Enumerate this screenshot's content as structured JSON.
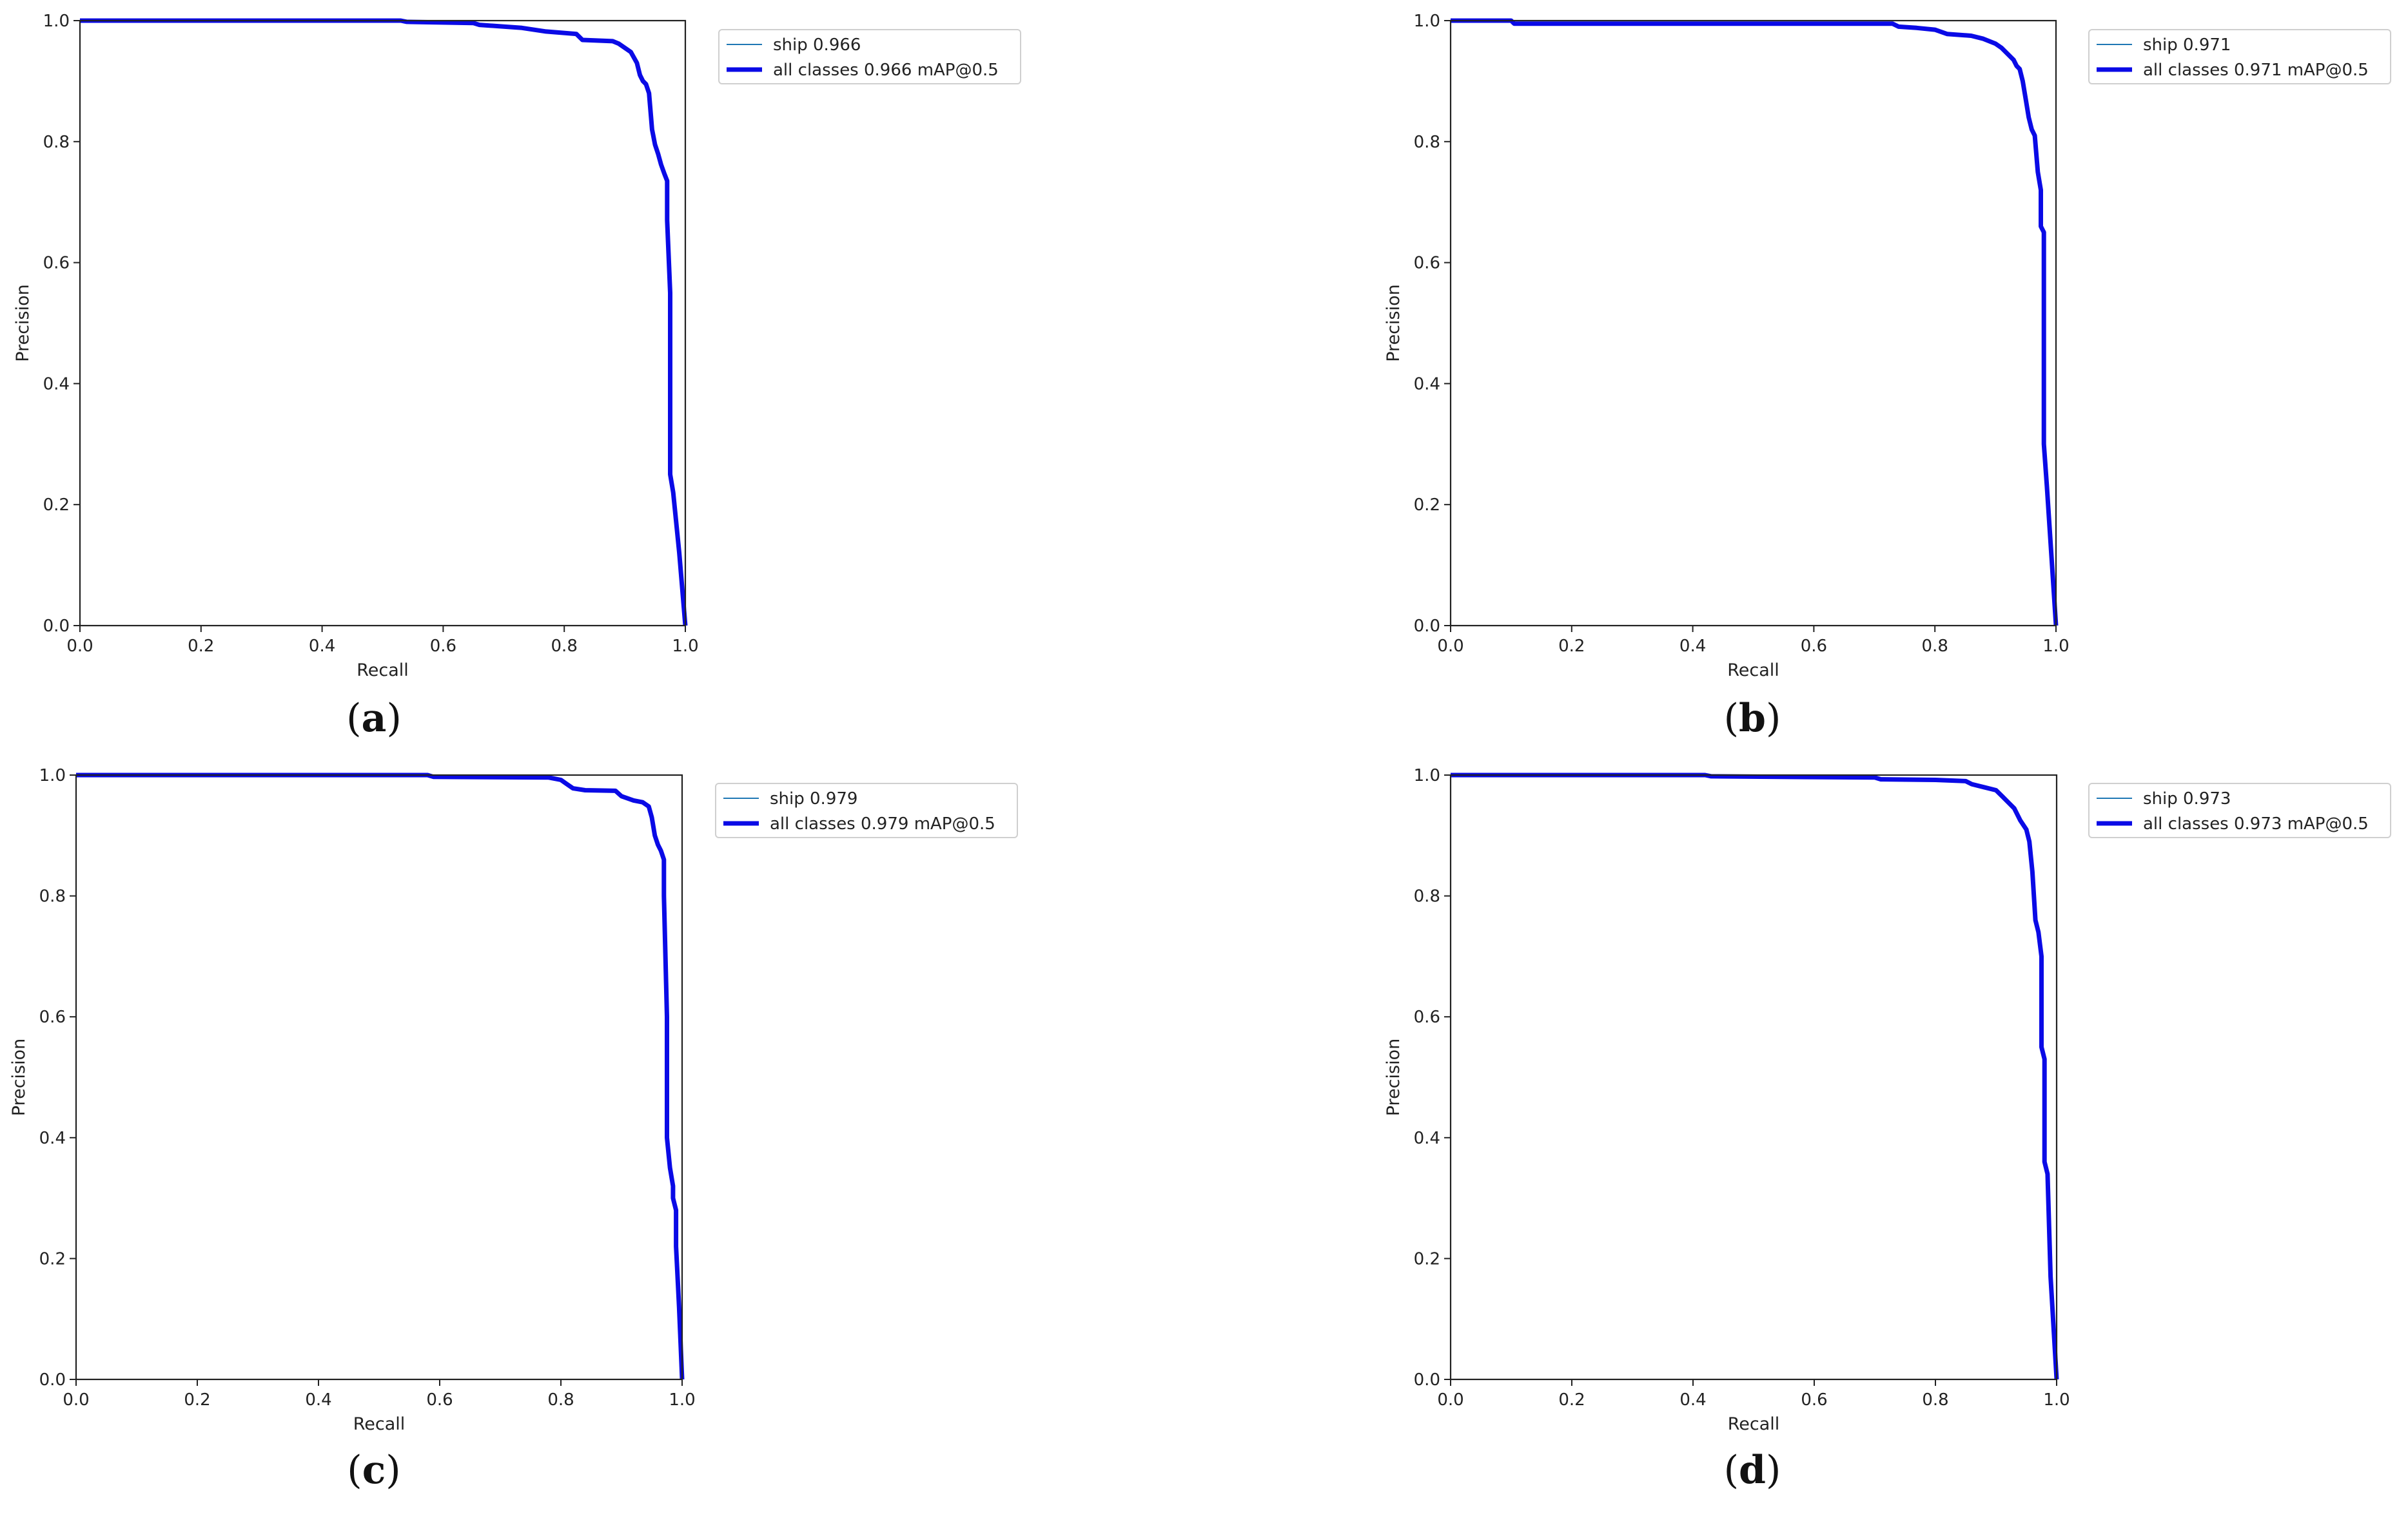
{
  "figure": {
    "panels": [
      {
        "caption_letter": "a",
        "legend": {
          "ship_label": "ship 0.966",
          "all_label": "all classes 0.966 mAP@0.5"
        }
      },
      {
        "caption_letter": "b",
        "legend": {
          "ship_label": "ship 0.971",
          "all_label": "all classes 0.971 mAP@0.5"
        }
      },
      {
        "caption_letter": "c",
        "legend": {
          "ship_label": "ship 0.979",
          "all_label": "all classes 0.979 mAP@0.5"
        }
      },
      {
        "caption_letter": "d",
        "legend": {
          "ship_label": "ship 0.973",
          "all_label": "all classes 0.973 mAP@0.5"
        }
      }
    ]
  },
  "chart_data": [
    {
      "type": "line",
      "xlabel": "Recall",
      "ylabel": "Precision",
      "xlim": [
        0,
        1
      ],
      "ylim": [
        0,
        1
      ],
      "xticks": [
        "0.0",
        "0.2",
        "0.4",
        "0.6",
        "0.8",
        "1.0"
      ],
      "yticks": [
        "0.0",
        "0.2",
        "0.4",
        "0.6",
        "0.8",
        "1.0"
      ],
      "grid": false,
      "legend_placement": "outside-right",
      "series": [
        {
          "name": "ship 0.966",
          "color": "#1f77b4",
          "width": "thin",
          "points": [
            [
              0.0,
              1.0
            ],
            [
              0.53,
              1.0
            ],
            [
              0.54,
              0.998
            ],
            [
              0.65,
              0.996
            ],
            [
              0.66,
              0.993
            ],
            [
              0.73,
              0.988
            ],
            [
              0.77,
              0.982
            ],
            [
              0.82,
              0.978
            ],
            [
              0.83,
              0.968
            ],
            [
              0.88,
              0.966
            ],
            [
              0.89,
              0.962
            ],
            [
              0.9,
              0.955
            ],
            [
              0.91,
              0.948
            ],
            [
              0.92,
              0.93
            ],
            [
              0.925,
              0.91
            ],
            [
              0.93,
              0.9
            ],
            [
              0.935,
              0.895
            ],
            [
              0.94,
              0.88
            ],
            [
              0.945,
              0.82
            ],
            [
              0.95,
              0.795
            ],
            [
              0.955,
              0.78
            ],
            [
              0.96,
              0.762
            ],
            [
              0.965,
              0.748
            ],
            [
              0.97,
              0.735
            ],
            [
              0.97,
              0.67
            ],
            [
              0.975,
              0.55
            ],
            [
              0.975,
              0.25
            ],
            [
              0.98,
              0.22
            ],
            [
              0.99,
              0.12
            ],
            [
              1.0,
              0.0
            ]
          ]
        },
        {
          "name": "all classes 0.966 mAP@0.5",
          "color": "#0a0ae6",
          "width": "thick",
          "points": [
            [
              0.0,
              1.0
            ],
            [
              0.53,
              1.0
            ],
            [
              0.54,
              0.998
            ],
            [
              0.65,
              0.996
            ],
            [
              0.66,
              0.993
            ],
            [
              0.73,
              0.988
            ],
            [
              0.77,
              0.982
            ],
            [
              0.82,
              0.978
            ],
            [
              0.83,
              0.968
            ],
            [
              0.88,
              0.966
            ],
            [
              0.89,
              0.962
            ],
            [
              0.9,
              0.955
            ],
            [
              0.91,
              0.948
            ],
            [
              0.92,
              0.93
            ],
            [
              0.925,
              0.91
            ],
            [
              0.93,
              0.9
            ],
            [
              0.935,
              0.895
            ],
            [
              0.94,
              0.88
            ],
            [
              0.945,
              0.82
            ],
            [
              0.95,
              0.795
            ],
            [
              0.955,
              0.78
            ],
            [
              0.96,
              0.762
            ],
            [
              0.965,
              0.748
            ],
            [
              0.97,
              0.735
            ],
            [
              0.97,
              0.67
            ],
            [
              0.975,
              0.55
            ],
            [
              0.975,
              0.25
            ],
            [
              0.98,
              0.22
            ],
            [
              0.99,
              0.12
            ],
            [
              1.0,
              0.0
            ]
          ]
        }
      ]
    },
    {
      "type": "line",
      "xlabel": "Recall",
      "ylabel": "Precision",
      "xlim": [
        0,
        1
      ],
      "ylim": [
        0,
        1
      ],
      "xticks": [
        "0.0",
        "0.2",
        "0.4",
        "0.6",
        "0.8",
        "1.0"
      ],
      "yticks": [
        "0.0",
        "0.2",
        "0.4",
        "0.6",
        "0.8",
        "1.0"
      ],
      "grid": false,
      "legend_placement": "outside-right",
      "series": [
        {
          "name": "ship 0.971",
          "color": "#1f77b4",
          "width": "thin",
          "points": [
            [
              0.0,
              1.0
            ],
            [
              0.1,
              1.0
            ],
            [
              0.105,
              0.995
            ],
            [
              0.73,
              0.995
            ],
            [
              0.74,
              0.99
            ],
            [
              0.77,
              0.988
            ],
            [
              0.8,
              0.985
            ],
            [
              0.82,
              0.978
            ],
            [
              0.86,
              0.975
            ],
            [
              0.88,
              0.97
            ],
            [
              0.9,
              0.962
            ],
            [
              0.91,
              0.955
            ],
            [
              0.92,
              0.945
            ],
            [
              0.93,
              0.935
            ],
            [
              0.935,
              0.925
            ],
            [
              0.94,
              0.92
            ],
            [
              0.945,
              0.9
            ],
            [
              0.95,
              0.87
            ],
            [
              0.955,
              0.84
            ],
            [
              0.96,
              0.82
            ],
            [
              0.965,
              0.81
            ],
            [
              0.97,
              0.75
            ],
            [
              0.975,
              0.72
            ],
            [
              0.975,
              0.66
            ],
            [
              0.98,
              0.65
            ],
            [
              0.98,
              0.3
            ],
            [
              0.985,
              0.23
            ],
            [
              1.0,
              0.0
            ]
          ]
        },
        {
          "name": "all classes 0.971 mAP@0.5",
          "color": "#0a0ae6",
          "width": "thick",
          "points": [
            [
              0.0,
              1.0
            ],
            [
              0.1,
              1.0
            ],
            [
              0.105,
              0.995
            ],
            [
              0.73,
              0.995
            ],
            [
              0.74,
              0.99
            ],
            [
              0.77,
              0.988
            ],
            [
              0.8,
              0.985
            ],
            [
              0.82,
              0.978
            ],
            [
              0.86,
              0.975
            ],
            [
              0.88,
              0.97
            ],
            [
              0.9,
              0.962
            ],
            [
              0.91,
              0.955
            ],
            [
              0.92,
              0.945
            ],
            [
              0.93,
              0.935
            ],
            [
              0.935,
              0.925
            ],
            [
              0.94,
              0.92
            ],
            [
              0.945,
              0.9
            ],
            [
              0.95,
              0.87
            ],
            [
              0.955,
              0.84
            ],
            [
              0.96,
              0.82
            ],
            [
              0.965,
              0.81
            ],
            [
              0.97,
              0.75
            ],
            [
              0.975,
              0.72
            ],
            [
              0.975,
              0.66
            ],
            [
              0.98,
              0.65
            ],
            [
              0.98,
              0.3
            ],
            [
              0.985,
              0.23
            ],
            [
              1.0,
              0.0
            ]
          ]
        }
      ]
    },
    {
      "type": "line",
      "xlabel": "Recall",
      "ylabel": "Precision",
      "xlim": [
        0,
        1
      ],
      "ylim": [
        0,
        1
      ],
      "xticks": [
        "0.0",
        "0.2",
        "0.4",
        "0.6",
        "0.8",
        "1.0"
      ],
      "yticks": [
        "0.0",
        "0.2",
        "0.4",
        "0.6",
        "0.8",
        "1.0"
      ],
      "grid": false,
      "legend_placement": "outside-right",
      "series": [
        {
          "name": "ship 0.979",
          "color": "#1f77b4",
          "width": "thin",
          "points": [
            [
              0.0,
              1.0
            ],
            [
              0.58,
              1.0
            ],
            [
              0.59,
              0.997
            ],
            [
              0.78,
              0.996
            ],
            [
              0.8,
              0.992
            ],
            [
              0.81,
              0.985
            ],
            [
              0.82,
              0.978
            ],
            [
              0.84,
              0.975
            ],
            [
              0.89,
              0.974
            ],
            [
              0.9,
              0.965
            ],
            [
              0.92,
              0.958
            ],
            [
              0.935,
              0.955
            ],
            [
              0.945,
              0.948
            ],
            [
              0.95,
              0.93
            ],
            [
              0.955,
              0.9
            ],
            [
              0.96,
              0.885
            ],
            [
              0.965,
              0.875
            ],
            [
              0.97,
              0.86
            ],
            [
              0.97,
              0.8
            ],
            [
              0.975,
              0.6
            ],
            [
              0.975,
              0.4
            ],
            [
              0.98,
              0.35
            ],
            [
              0.985,
              0.32
            ],
            [
              0.985,
              0.3
            ],
            [
              0.99,
              0.28
            ],
            [
              0.99,
              0.22
            ],
            [
              0.995,
              0.12
            ],
            [
              1.0,
              0.0
            ]
          ]
        },
        {
          "name": "all classes 0.979 mAP@0.5",
          "color": "#0a0ae6",
          "width": "thick",
          "points": [
            [
              0.0,
              1.0
            ],
            [
              0.58,
              1.0
            ],
            [
              0.59,
              0.997
            ],
            [
              0.78,
              0.996
            ],
            [
              0.8,
              0.992
            ],
            [
              0.81,
              0.985
            ],
            [
              0.82,
              0.978
            ],
            [
              0.84,
              0.975
            ],
            [
              0.89,
              0.974
            ],
            [
              0.9,
              0.965
            ],
            [
              0.92,
              0.958
            ],
            [
              0.935,
              0.955
            ],
            [
              0.945,
              0.948
            ],
            [
              0.95,
              0.93
            ],
            [
              0.955,
              0.9
            ],
            [
              0.96,
              0.885
            ],
            [
              0.965,
              0.875
            ],
            [
              0.97,
              0.86
            ],
            [
              0.97,
              0.8
            ],
            [
              0.975,
              0.6
            ],
            [
              0.975,
              0.4
            ],
            [
              0.98,
              0.35
            ],
            [
              0.985,
              0.32
            ],
            [
              0.985,
              0.3
            ],
            [
              0.99,
              0.28
            ],
            [
              0.99,
              0.22
            ],
            [
              0.995,
              0.12
            ],
            [
              1.0,
              0.0
            ]
          ]
        }
      ]
    },
    {
      "type": "line",
      "xlabel": "Recall",
      "ylabel": "Precision",
      "xlim": [
        0,
        1
      ],
      "ylim": [
        0,
        1
      ],
      "xticks": [
        "0.0",
        "0.2",
        "0.4",
        "0.6",
        "0.8",
        "1.0"
      ],
      "yticks": [
        "0.0",
        "0.2",
        "0.4",
        "0.6",
        "0.8",
        "1.0"
      ],
      "grid": false,
      "legend_placement": "outside-right",
      "series": [
        {
          "name": "ship 0.973",
          "color": "#1f77b4",
          "width": "thin",
          "points": [
            [
              0.0,
              1.0
            ],
            [
              0.42,
              1.0
            ],
            [
              0.43,
              0.998
            ],
            [
              0.7,
              0.996
            ],
            [
              0.71,
              0.993
            ],
            [
              0.8,
              0.992
            ],
            [
              0.85,
              0.99
            ],
            [
              0.86,
              0.985
            ],
            [
              0.88,
              0.98
            ],
            [
              0.9,
              0.975
            ],
            [
              0.91,
              0.965
            ],
            [
              0.92,
              0.955
            ],
            [
              0.93,
              0.945
            ],
            [
              0.94,
              0.925
            ],
            [
              0.95,
              0.91
            ],
            [
              0.955,
              0.89
            ],
            [
              0.96,
              0.84
            ],
            [
              0.965,
              0.76
            ],
            [
              0.97,
              0.74
            ],
            [
              0.975,
              0.7
            ],
            [
              0.975,
              0.55
            ],
            [
              0.98,
              0.53
            ],
            [
              0.98,
              0.36
            ],
            [
              0.985,
              0.34
            ],
            [
              0.99,
              0.17
            ],
            [
              1.0,
              0.0
            ]
          ]
        },
        {
          "name": "all classes 0.973 mAP@0.5",
          "color": "#0a0ae6",
          "width": "thick",
          "points": [
            [
              0.0,
              1.0
            ],
            [
              0.42,
              1.0
            ],
            [
              0.43,
              0.998
            ],
            [
              0.7,
              0.996
            ],
            [
              0.71,
              0.993
            ],
            [
              0.8,
              0.992
            ],
            [
              0.85,
              0.99
            ],
            [
              0.86,
              0.985
            ],
            [
              0.88,
              0.98
            ],
            [
              0.9,
              0.975
            ],
            [
              0.91,
              0.965
            ],
            [
              0.92,
              0.955
            ],
            [
              0.93,
              0.945
            ],
            [
              0.94,
              0.925
            ],
            [
              0.95,
              0.91
            ],
            [
              0.955,
              0.89
            ],
            [
              0.96,
              0.84
            ],
            [
              0.965,
              0.76
            ],
            [
              0.97,
              0.74
            ],
            [
              0.975,
              0.7
            ],
            [
              0.975,
              0.55
            ],
            [
              0.98,
              0.53
            ],
            [
              0.98,
              0.36
            ],
            [
              0.985,
              0.34
            ],
            [
              0.99,
              0.17
            ],
            [
              1.0,
              0.0
            ]
          ]
        }
      ]
    }
  ]
}
